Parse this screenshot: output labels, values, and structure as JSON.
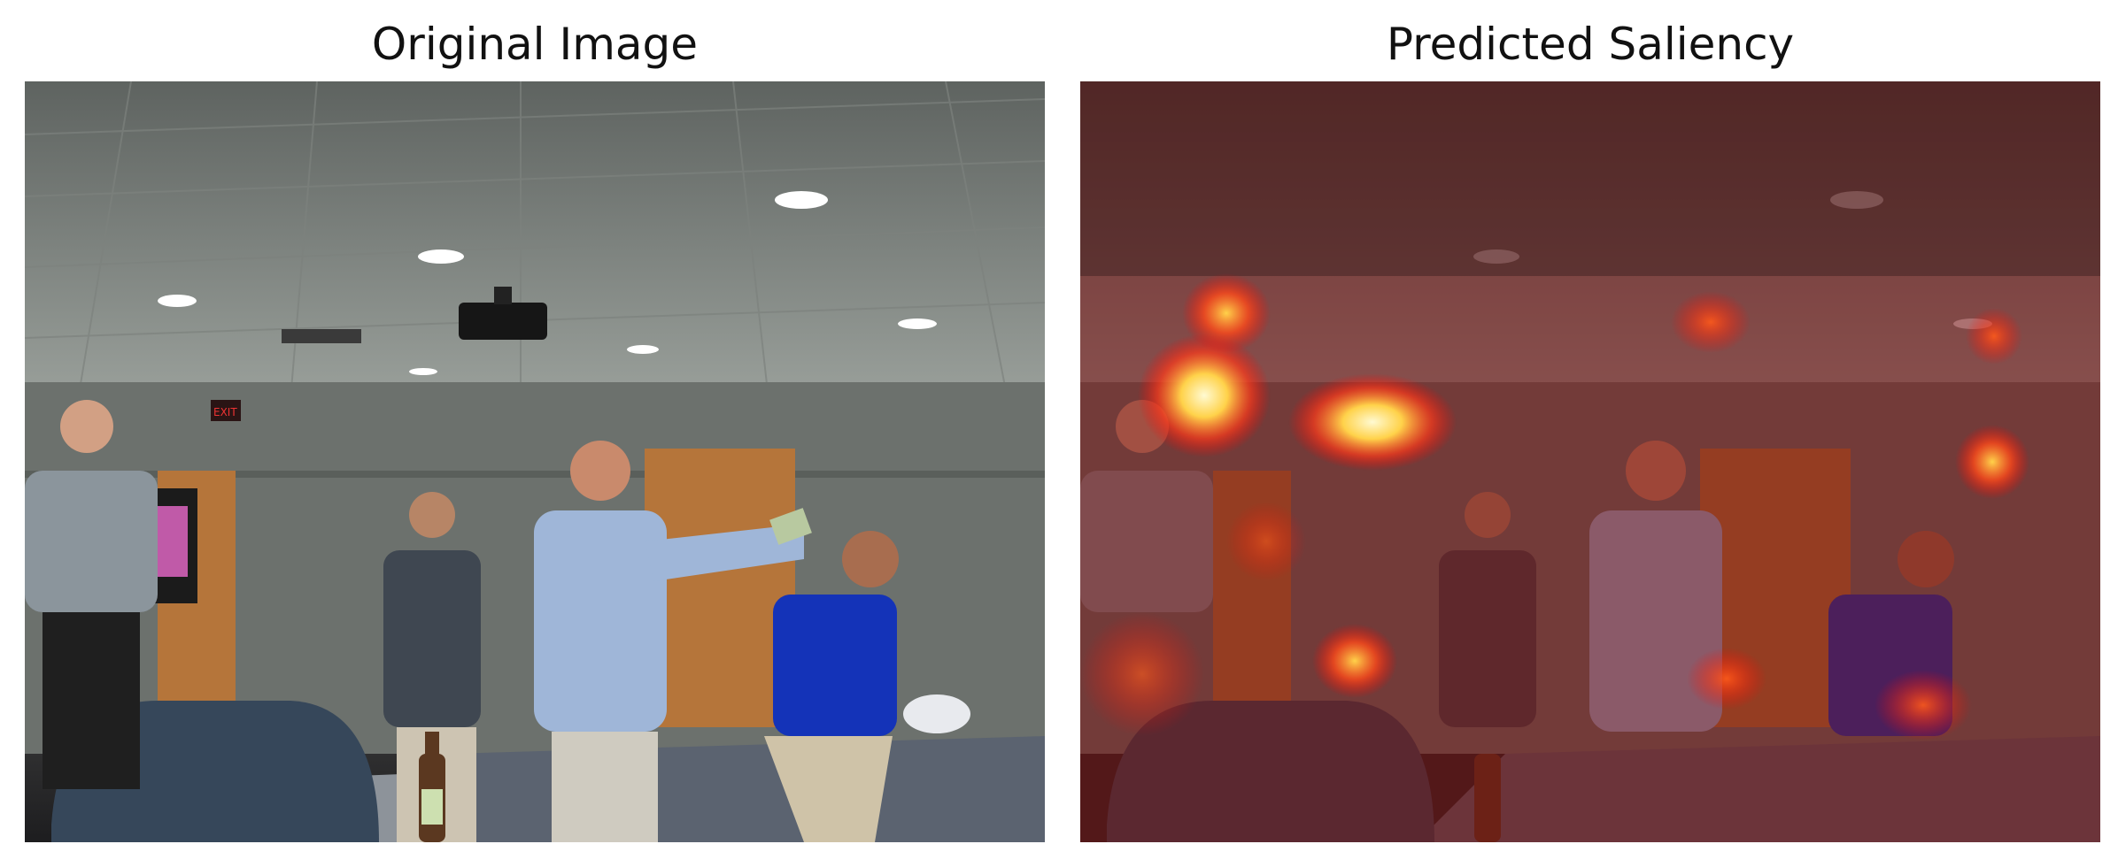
{
  "panels": {
    "left": {
      "title": "Original Image"
    },
    "right": {
      "title": "Predicted Saliency"
    }
  },
  "scene": {
    "exit_sign": "EXIT"
  },
  "colors": {
    "ceiling": "#8f948f",
    "wall": "#6f7470",
    "door": "#b5753a",
    "blue_shirt": "#1433b8",
    "light_blue_shirt": "#9fb6d8",
    "saliency_overlay": "#7a0f0f",
    "saliency_hot": "#ffd24a"
  }
}
